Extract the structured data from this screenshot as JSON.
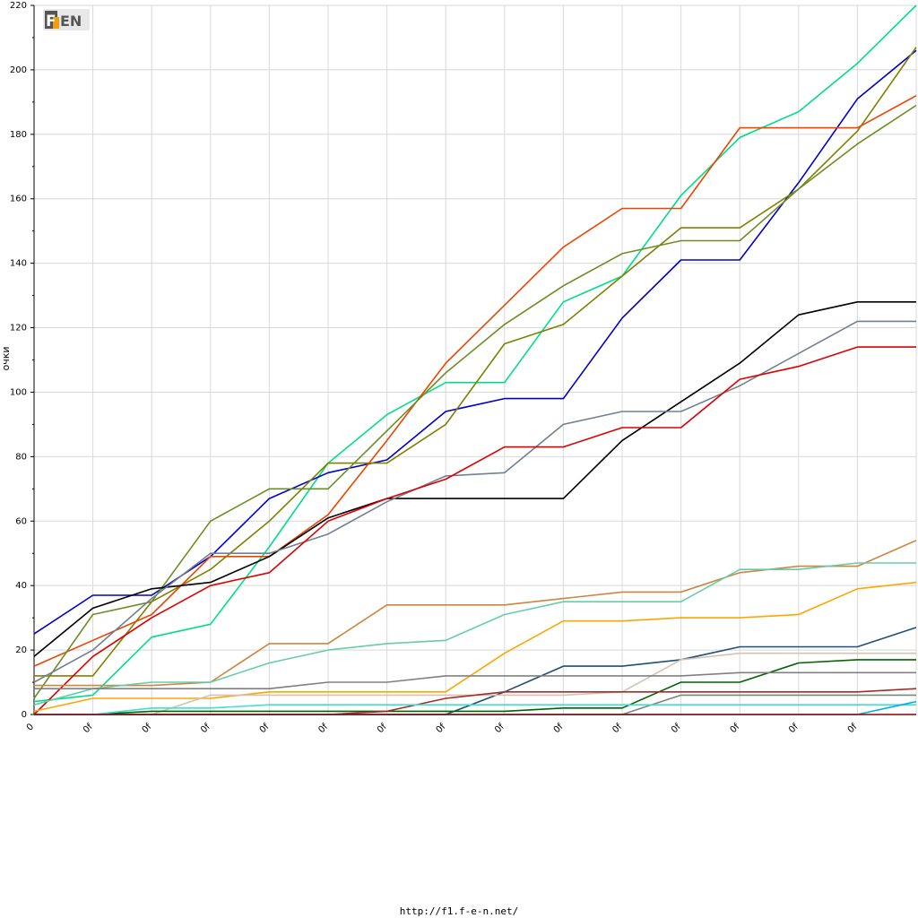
{
  "logo": {
    "text_f": "F",
    "text_rest": "EN"
  },
  "footer": {
    "url": "http://f1.f-e-n.net/"
  },
  "chart_data": {
    "type": "line",
    "title": "",
    "xlabel": "",
    "ylabel": "очки",
    "ylim": [
      0,
      220
    ],
    "yticks": [
      0,
      20,
      40,
      60,
      80,
      100,
      120,
      140,
      160,
      180,
      200,
      220
    ],
    "grid": true,
    "categories": [
      "0",
      "0f",
      "0f",
      "0f",
      "0f",
      "0f",
      "0f",
      "0f",
      "0f",
      "0f",
      "0f",
      "0f",
      "0f",
      "0f",
      "0f",
      "0f"
    ],
    "series": [
      {
        "color": "#00dd88",
        "values": [
          4,
          6,
          24,
          28,
          52,
          78,
          93,
          103,
          103,
          128,
          136,
          161,
          179,
          187,
          202,
          220
        ]
      },
      {
        "color": "#0000cc",
        "values": [
          25,
          37,
          37,
          49,
          67,
          75,
          79,
          94,
          98,
          98,
          123,
          141,
          141,
          165,
          191,
          206
        ]
      },
      {
        "color": "#808000",
        "values": [
          12,
          12,
          35,
          45,
          60,
          78,
          78,
          90,
          115,
          121,
          136,
          151,
          151,
          163,
          181,
          207
        ]
      },
      {
        "color": "#ee4400",
        "values": [
          15,
          23,
          31,
          49,
          49,
          62,
          85,
          109,
          127,
          145,
          157,
          157,
          182,
          182,
          182,
          192
        ]
      },
      {
        "color": "#6b8e23",
        "values": [
          5,
          31,
          35,
          60,
          70,
          70,
          88,
          106,
          121,
          133,
          143,
          147,
          147,
          163,
          177,
          189
        ]
      },
      {
        "color": "#000000",
        "values": [
          18,
          33,
          39,
          41,
          49,
          61,
          67,
          67,
          67,
          67,
          85,
          97,
          109,
          124,
          128,
          128
        ]
      },
      {
        "color": "#708090",
        "values": [
          10,
          20,
          36,
          50,
          50,
          56,
          66,
          74,
          75,
          90,
          94,
          94,
          102,
          112,
          122,
          122
        ]
      },
      {
        "color": "#dd0000",
        "values": [
          0,
          18,
          30,
          40,
          44,
          60,
          67,
          73,
          83,
          83,
          89,
          89,
          104,
          108,
          114,
          114
        ]
      },
      {
        "color": "#cd853f",
        "values": [
          9,
          9,
          9,
          10,
          22,
          22,
          34,
          34,
          34,
          36,
          38,
          38,
          44,
          46,
          46,
          54
        ]
      },
      {
        "color": "#66cdaa",
        "values": [
          3,
          8,
          10,
          10,
          16,
          20,
          22,
          23,
          31,
          35,
          35,
          35,
          45,
          45,
          47,
          47
        ]
      },
      {
        "color": "#ffa500",
        "values": [
          1,
          5,
          5,
          5,
          7,
          7,
          7,
          7,
          19,
          29,
          29,
          30,
          30,
          31,
          39,
          41
        ]
      },
      {
        "color": "#1f4e79",
        "values": [
          0,
          0,
          0,
          0,
          0,
          0,
          0,
          0,
          7,
          15,
          15,
          17,
          21,
          21,
          21,
          27
        ]
      },
      {
        "color": "#d2c4b0",
        "values": [
          0,
          0,
          0,
          6,
          6,
          6,
          6,
          6,
          6,
          6,
          7,
          17,
          19,
          19,
          19,
          19
        ]
      },
      {
        "color": "#006400",
        "values": [
          0,
          0,
          1,
          1,
          1,
          1,
          1,
          1,
          1,
          2,
          2,
          10,
          10,
          16,
          17,
          17
        ]
      },
      {
        "color": "#808080",
        "values": [
          8,
          8,
          8,
          8,
          8,
          10,
          10,
          12,
          12,
          12,
          12,
          12,
          13,
          13,
          13,
          13
        ]
      },
      {
        "color": "#a52a2a",
        "values": [
          0,
          0,
          0,
          0,
          0,
          0,
          1,
          5,
          7,
          7,
          7,
          7,
          7,
          7,
          7,
          8
        ]
      },
      {
        "color": "#778877",
        "values": [
          0,
          0,
          0,
          0,
          0,
          0,
          0,
          0,
          0,
          0,
          0,
          6,
          6,
          6,
          6,
          6
        ]
      },
      {
        "color": "#40e0d0",
        "values": [
          0,
          0,
          2,
          2,
          3,
          3,
          3,
          3,
          3,
          3,
          3,
          3,
          3,
          3,
          3,
          3
        ]
      },
      {
        "color": "#00aaee",
        "values": [
          0,
          0,
          0,
          0,
          0,
          0,
          0,
          0,
          0,
          0,
          0,
          0,
          0,
          0,
          0,
          4
        ]
      },
      {
        "color": "#8b0000",
        "values": [
          0,
          0,
          0,
          0,
          0,
          0,
          0,
          0,
          0,
          0,
          0,
          0,
          0,
          0,
          0,
          0
        ]
      }
    ]
  }
}
